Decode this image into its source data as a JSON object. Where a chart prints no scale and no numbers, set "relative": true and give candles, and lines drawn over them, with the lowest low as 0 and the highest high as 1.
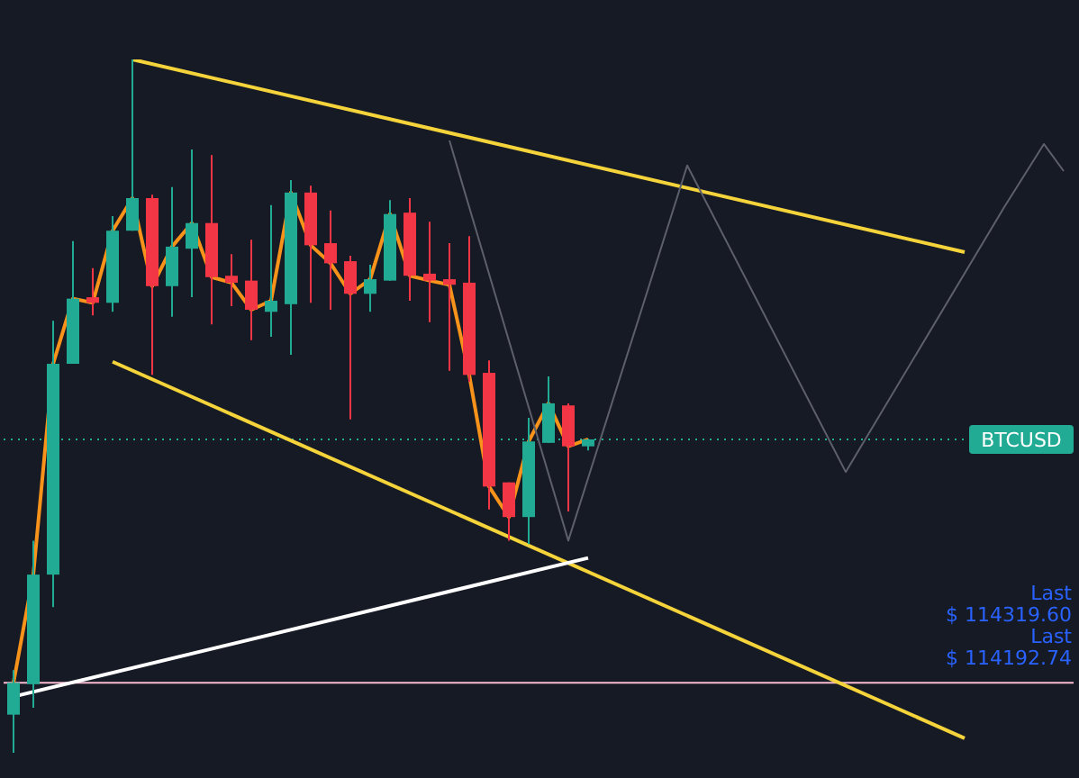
{
  "chart_data": {
    "type": "candlestick",
    "relative": true,
    "categories": [
      null,
      null,
      null,
      null,
      null,
      null,
      null,
      null,
      null,
      null,
      null,
      null,
      null,
      null,
      null,
      null,
      null,
      null,
      null,
      null,
      null,
      null,
      null,
      null,
      null,
      null,
      null,
      null,
      null,
      null,
      null,
      null,
      null,
      null,
      null,
      null,
      null,
      null,
      null,
      null,
      null,
      null,
      null,
      null,
      null,
      null,
      null,
      null,
      null,
      null,
      null,
      null,
      null,
      null
    ],
    "ohlc": [
      [
        0.055,
        0.119,
        0,
        0.101
      ],
      [
        0.099,
        0.306,
        0.065,
        0.257
      ],
      [
        0.257,
        0.623,
        0.21,
        0.561
      ],
      [
        0.561,
        0.738,
        0.561,
        0.655
      ],
      [
        0.657,
        0.699,
        0.631,
        0.649
      ],
      [
        0.649,
        0.774,
        0.636,
        0.753
      ],
      [
        0.753,
        1,
        0.753,
        0.8
      ],
      [
        0.8,
        0.805,
        0.545,
        0.673
      ],
      [
        0.673,
        0.816,
        0.629,
        0.73
      ],
      [
        0.727,
        0.87,
        0.657,
        0.764
      ],
      [
        0.764,
        0.862,
        0.618,
        0.686
      ],
      [
        0.688,
        0.719,
        0.644,
        0.678
      ],
      [
        0.681,
        0.74,
        0.595,
        0.639
      ],
      [
        0.636,
        0.79,
        0.6,
        0.652
      ],
      [
        0.647,
        0.826,
        0.574,
        0.808
      ],
      [
        0.808,
        0.818,
        0.649,
        0.732
      ],
      [
        0.735,
        0.782,
        0.639,
        0.706
      ],
      [
        0.709,
        0.717,
        0.481,
        0.662
      ],
      [
        0.662,
        0.704,
        0.636,
        0.683
      ],
      [
        0.681,
        0.797,
        0.681,
        0.777
      ],
      [
        0.779,
        0.8,
        0.652,
        0.688
      ],
      [
        0.691,
        0.766,
        0.621,
        0.681
      ],
      [
        0.683,
        0.735,
        0.551,
        0.675
      ],
      [
        0.678,
        0.745,
        0.535,
        0.545
      ],
      [
        0.548,
        0.566,
        0.351,
        0.384
      ],
      [
        0.39,
        0.39,
        0.306,
        0.34
      ],
      [
        0.34,
        0.483,
        0.301,
        0.449
      ],
      [
        0.447,
        0.543,
        0.447,
        0.504
      ],
      [
        0.501,
        0.504,
        0.348,
        0.442
      ],
      [
        0.442,
        0.452,
        0.436,
        0.452
      ],
      null,
      null,
      null,
      null,
      null,
      null,
      null,
      null,
      null,
      null,
      null,
      null,
      null,
      null,
      null,
      null,
      null,
      null,
      null,
      null,
      null,
      null,
      null,
      null
    ],
    "colors": [
      "#22ab94",
      "#22ab94",
      "#22ab94",
      "#22ab94",
      "#f23645",
      "#22ab94",
      "#22ab94",
      "#f23645",
      "#22ab94",
      "#22ab94",
      "#f23645",
      "#f23645",
      "#f23645",
      "#22ab94",
      "#22ab94",
      "#f23645",
      "#f23645",
      "#f23645",
      "#22ab94",
      "#22ab94",
      "#f23645",
      "#f23645",
      "#f23645",
      "#f23645",
      "#f23645",
      "#f23645",
      "#22ab94",
      "#22ab94",
      "#f23645",
      "#22ab94",
      null,
      null,
      null,
      null,
      null,
      null,
      null,
      null,
      null,
      null,
      null,
      null,
      null,
      null,
      null,
      null,
      null,
      null,
      null,
      null,
      null,
      null,
      null,
      null
    ],
    "series": [
      {
        "type": "line",
        "color": "#f7931a",
        "values": [
          0.101,
          0.257,
          0.561,
          0.655,
          0.649,
          0.753,
          0.8,
          0.673,
          0.73,
          0.764,
          0.686,
          0.678,
          0.639,
          0.652,
          0.808,
          0.732,
          0.706,
          0.662,
          0.683,
          0.777,
          0.688,
          0.681,
          0.675,
          0.545,
          0.384,
          0.34,
          0.449,
          0.504,
          0.442,
          0.452,
          null,
          null,
          null,
          null,
          null,
          null,
          null,
          null,
          null,
          null,
          null,
          null,
          null,
          null,
          null,
          null,
          null,
          null,
          null,
          null,
          null,
          null,
          null,
          null
        ]
      },
      {
        "type": "line",
        "color": "#f5d33a",
        "values": [
          null,
          null,
          null,
          null,
          null,
          null,
          1,
          null,
          null,
          null,
          null,
          null,
          null,
          null,
          null,
          null,
          null,
          null,
          null,
          null,
          null,
          null,
          null,
          null,
          null,
          null,
          null,
          null,
          null,
          null,
          null,
          null,
          null,
          null,
          null,
          null,
          null,
          null,
          null,
          null,
          null,
          null,
          null,
          null,
          null,
          null,
          null,
          null,
          0.722,
          null,
          null,
          null,
          null,
          null
        ]
      },
      {
        "type": "line",
        "color": "#f5d33a",
        "values": [
          null,
          null,
          null,
          null,
          null,
          0.564,
          null,
          null,
          null,
          null,
          null,
          null,
          null,
          null,
          null,
          null,
          null,
          null,
          null,
          null,
          null,
          null,
          null,
          null,
          null,
          null,
          null,
          null,
          null,
          null,
          null,
          null,
          null,
          null,
          null,
          null,
          null,
          null,
          null,
          null,
          null,
          null,
          null,
          null,
          null,
          null,
          null,
          null,
          0.021,
          null,
          null,
          null,
          null,
          null
        ]
      },
      {
        "type": "line",
        "color": "#ffffff",
        "values": [
          0.081,
          null,
          null,
          null,
          null,
          null,
          null,
          null,
          null,
          null,
          null,
          null,
          null,
          null,
          null,
          null,
          null,
          null,
          null,
          null,
          null,
          null,
          null,
          null,
          null,
          null,
          null,
          null,
          null,
          0.281,
          null,
          null,
          null,
          null,
          null,
          null,
          null,
          null,
          null,
          null,
          null,
          null,
          null,
          null,
          null,
          null,
          null,
          null,
          null,
          null,
          null,
          null,
          null,
          null
        ]
      },
      {
        "type": "line",
        "color": "#5d606b",
        "values": [
          null,
          null,
          null,
          null,
          null,
          null,
          null,
          null,
          null,
          null,
          null,
          null,
          null,
          null,
          null,
          null,
          null,
          null,
          null,
          null,
          null,
          null,
          0.883,
          null,
          null,
          null,
          null,
          null,
          0.306,
          null,
          null,
          null,
          null,
          null,
          0.847,
          null,
          null,
          null,
          null,
          null,
          null,
          null,
          0.405,
          null,
          null,
          null,
          null,
          null,
          null,
          null,
          0.787,
          null,
          0.878,
          0.839
        ]
      }
    ],
    "ref_lines": [
      {
        "axis": "y",
        "value": 0.452,
        "label": "BTCUSD",
        "color": "#22ab94",
        "line_style": "dotted"
      },
      {
        "axis": "y",
        "value": 0.101,
        "color": "#f8bbd0",
        "line_style": "solid"
      }
    ],
    "annotations": [
      "Last",
      "$ 114319.60",
      "Last",
      "$ 114192.74"
    ]
  }
}
